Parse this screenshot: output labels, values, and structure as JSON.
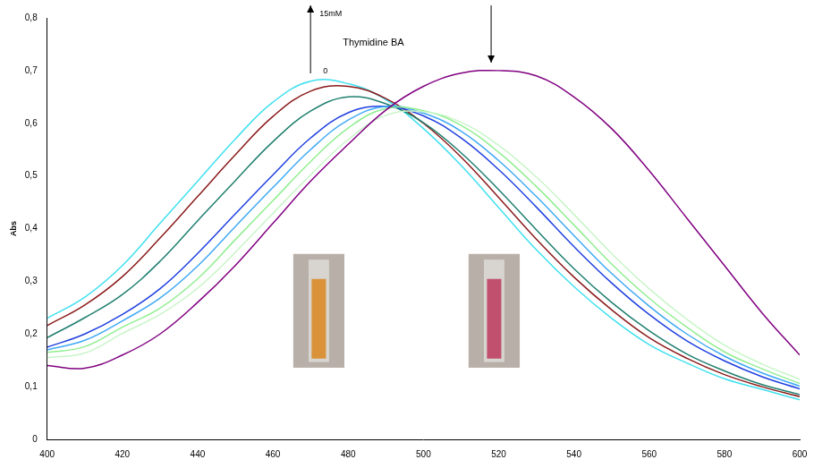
{
  "chart_data": {
    "type": "line",
    "y_label": "Abs",
    "annotations": {
      "label": "Thymidine BA",
      "arrow_top": "15mM",
      "arrow_bottom": "0"
    },
    "x": [
      400,
      410,
      420,
      430,
      440,
      450,
      460,
      470,
      480,
      490,
      500,
      510,
      520,
      530,
      540,
      550,
      560,
      570,
      580,
      590,
      600
    ],
    "series": [
      {
        "color": "#800080",
        "values": [
          0.14,
          0.135,
          0.16,
          0.2,
          0.26,
          0.33,
          0.41,
          0.49,
          0.56,
          0.625,
          0.67,
          0.695,
          0.7,
          0.69,
          0.65,
          0.59,
          0.51,
          0.42,
          0.33,
          0.24,
          0.16
        ]
      },
      {
        "color": "#c8f5c8",
        "values": [
          0.155,
          0.164,
          0.201,
          0.237,
          0.287,
          0.355,
          0.429,
          0.502,
          0.569,
          0.615,
          0.622,
          0.602,
          0.558,
          0.498,
          0.427,
          0.353,
          0.286,
          0.228,
          0.179,
          0.143,
          0.114
        ]
      },
      {
        "color": "#90ee90",
        "values": [
          0.165,
          0.176,
          0.213,
          0.249,
          0.305,
          0.379,
          0.453,
          0.527,
          0.591,
          0.628,
          0.624,
          0.596,
          0.545,
          0.48,
          0.407,
          0.333,
          0.268,
          0.213,
          0.166,
          0.134,
          0.106
        ]
      },
      {
        "color": "#3fa9f5",
        "values": [
          0.17,
          0.188,
          0.225,
          0.268,
          0.329,
          0.404,
          0.478,
          0.55,
          0.606,
          0.632,
          0.619,
          0.585,
          0.529,
          0.461,
          0.387,
          0.315,
          0.253,
          0.2,
          0.158,
          0.126,
          0.101
        ]
      },
      {
        "color": "#2040e0",
        "values": [
          0.175,
          0.2,
          0.237,
          0.286,
          0.353,
          0.428,
          0.502,
          0.572,
          0.62,
          0.632,
          0.614,
          0.572,
          0.512,
          0.441,
          0.366,
          0.297,
          0.237,
          0.187,
          0.149,
          0.119,
          0.096
        ]
      },
      {
        "color": "#1f7f6f",
        "values": [
          0.193,
          0.231,
          0.275,
          0.338,
          0.415,
          0.491,
          0.565,
          0.623,
          0.65,
          0.637,
          0.601,
          0.544,
          0.474,
          0.398,
          0.324,
          0.26,
          0.206,
          0.162,
          0.13,
          0.104,
          0.085
        ]
      },
      {
        "color": "#8b1a1a",
        "values": [
          0.216,
          0.255,
          0.309,
          0.382,
          0.461,
          0.54,
          0.613,
          0.661,
          0.67,
          0.647,
          0.6,
          0.536,
          0.459,
          0.38,
          0.308,
          0.246,
          0.193,
          0.154,
          0.123,
          0.1,
          0.081
        ]
      },
      {
        "color": "#40e0f0",
        "values": [
          0.23,
          0.27,
          0.33,
          0.41,
          0.49,
          0.57,
          0.64,
          0.68,
          0.675,
          0.645,
          0.59,
          0.52,
          0.44,
          0.36,
          0.29,
          0.23,
          0.18,
          0.145,
          0.115,
          0.095,
          0.075
        ]
      }
    ],
    "xlim": [
      400,
      600
    ],
    "xticks": [
      400,
      420,
      440,
      460,
      480,
      500,
      520,
      540,
      560,
      580,
      600
    ],
    "ylim": [
      0,
      0.8
    ],
    "yticks": [
      0,
      {
        "value": 0.1,
        "label": "0,1"
      },
      {
        "value": 0.2,
        "label": "0,2"
      },
      {
        "value": 0.3,
        "label": "0,3"
      },
      {
        "value": 0.4,
        "label": "0,4"
      },
      {
        "value": 0.5,
        "label": "0,5"
      },
      {
        "value": 0.6,
        "label": "0,6"
      },
      {
        "value": 0.7,
        "label": "0,7"
      },
      {
        "value": 0.8,
        "label": "0,8"
      }
    ],
    "grid": false,
    "marker": "none",
    "line_style": "solid"
  }
}
